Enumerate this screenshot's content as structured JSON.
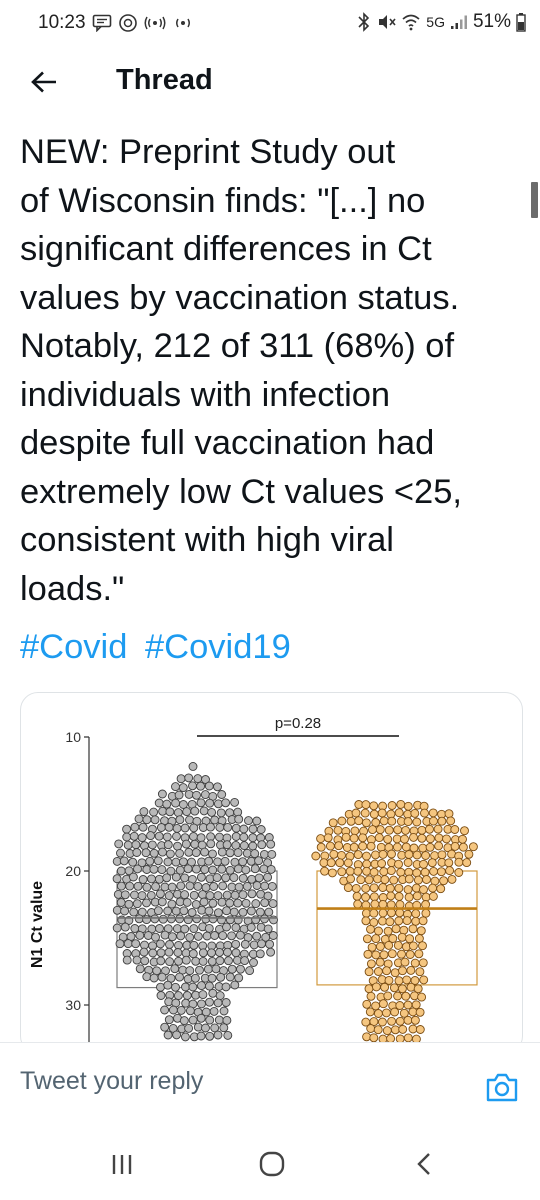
{
  "status_bar": {
    "time": "10:23",
    "network": "5G",
    "battery": "51%"
  },
  "header": {
    "title": "Thread"
  },
  "tweet": {
    "text": "NEW: Preprint Study out\nof Wisconsin finds: \"[...] no\nsignificant differences in Ct\nvalues by vaccination status.\nNotably, 212 of 311 (68%) of\nindividuals with infection\ndespite full vaccination had\nextremely low Ct values <25,\nconsistent with high viral\nloads.\"",
    "hashtags": [
      "#Covid",
      "#Covid19"
    ]
  },
  "chart_data": {
    "type": "scatter",
    "subtype": "beeswarm-boxplot",
    "ylabel": "N1 Ct value",
    "y_ticks": [
      "10",
      "20",
      "30"
    ],
    "ylim": [
      10,
      32.5
    ],
    "y_inverted": true,
    "annotation": "p=0.28",
    "series": [
      {
        "color": "#b9b9b9",
        "edge": "#3d3d3d",
        "box": {
          "median": 23.5,
          "q3": 28.7
        },
        "outlier": 12.2,
        "profile": [
          [
            12.2,
            0
          ],
          [
            13.5,
            0.28
          ],
          [
            15,
            0.52
          ],
          [
            16.5,
            0.82
          ],
          [
            17.5,
            0.92
          ],
          [
            18.5,
            0.98
          ],
          [
            20,
            0.98
          ],
          [
            21.5,
            0.96
          ],
          [
            22.5,
            0.98
          ],
          [
            24,
            0.97
          ],
          [
            25.5,
            0.95
          ],
          [
            26.5,
            0.88
          ],
          [
            27.5,
            0.72
          ],
          [
            28.5,
            0.52
          ],
          [
            29.5,
            0.4
          ],
          [
            31,
            0.4
          ],
          [
            32.5,
            0.4
          ]
        ]
      },
      {
        "color": "#f5c680",
        "edge": "#7a4c12",
        "box": {
          "median": 22.8,
          "q3": 28.5
        },
        "profile": [
          [
            14.2,
            0
          ],
          [
            15,
            0.45
          ],
          [
            16,
            0.72
          ],
          [
            17,
            0.88
          ],
          [
            18,
            0.97
          ],
          [
            19,
            0.98
          ],
          [
            20,
            0.9
          ],
          [
            21,
            0.62
          ],
          [
            22,
            0.52
          ],
          [
            23.5,
            0.4
          ],
          [
            25,
            0.35
          ],
          [
            26.5,
            0.36
          ],
          [
            27.5,
            0.34
          ],
          [
            29,
            0.35
          ],
          [
            30.5,
            0.38
          ],
          [
            32.5,
            0.38
          ]
        ]
      }
    ]
  },
  "reply": {
    "placeholder": "Tweet your reply"
  }
}
